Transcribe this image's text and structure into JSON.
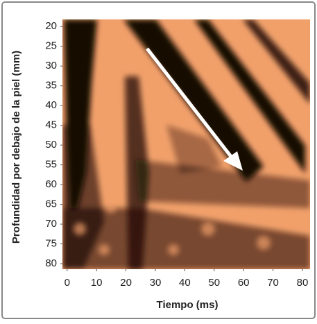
{
  "chart_data": {
    "type": "image",
    "xlabel": "Tiempo (ms)",
    "ylabel": "Profundidad por debajo de la piel (mm)",
    "xlim": [
      -1.6,
      82.6
    ],
    "xticks": [
      0,
      10,
      20,
      30,
      40,
      50,
      60,
      70,
      80
    ],
    "ylim": [
      18.2,
      81.4
    ],
    "yticks": [
      20,
      25,
      30,
      35,
      40,
      45,
      50,
      55,
      60,
      65,
      70,
      75,
      80
    ],
    "y_reversed": true
  }
}
